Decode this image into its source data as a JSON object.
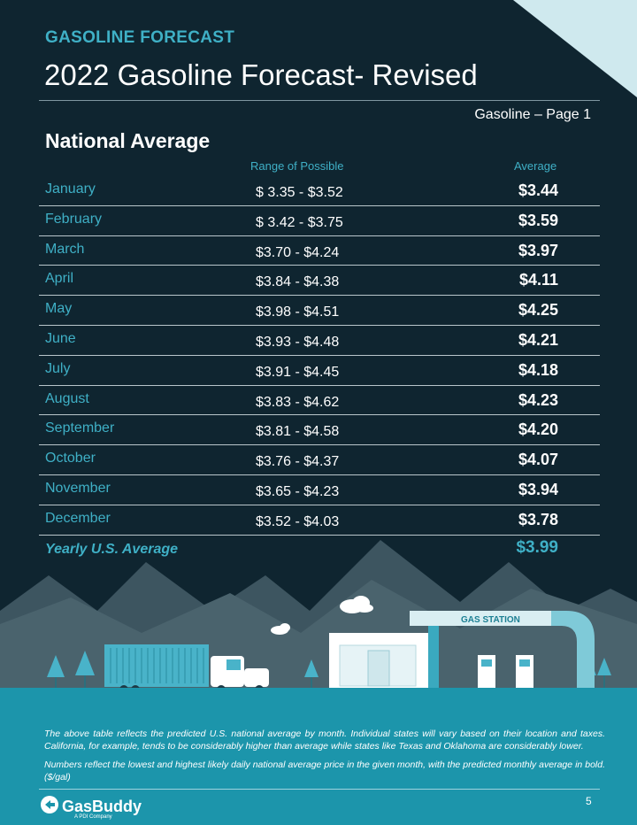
{
  "header": {
    "kicker": "GASOLINE FORECAST",
    "title": "2022 Gasoline Forecast- Revised",
    "page_label": "Gasoline – Page 1"
  },
  "section_title": "National Average",
  "columns": {
    "range": "Range of Possible",
    "average": "Average"
  },
  "rows": [
    {
      "month": "January",
      "range": "$ 3.35 - $3.52",
      "avg": "$3.44"
    },
    {
      "month": "February",
      "range": "$ 3.42 - $3.75",
      "avg": "$3.59"
    },
    {
      "month": "March",
      "range": "$3.70 - $4.24",
      "avg": "$3.97"
    },
    {
      "month": "April",
      "range": "$3.84 - $4.38",
      "avg": "$4.11"
    },
    {
      "month": "May",
      "range": "$3.98 - $4.51",
      "avg": "$4.25"
    },
    {
      "month": "June",
      "range": "$3.93 - $4.48",
      "avg": "$4.21"
    },
    {
      "month": "July",
      "range": "$3.91 - $4.45",
      "avg": "$4.18"
    },
    {
      "month": "August",
      "range": "$3.83 - $4.62",
      "avg": "$4.23"
    },
    {
      "month": "September",
      "range": "$3.81 - $4.58",
      "avg": "$4.20"
    },
    {
      "month": "October",
      "range": "$3.76 - $4.37",
      "avg": "$4.07"
    },
    {
      "month": "November",
      "range": "$3.65 - $4.23",
      "avg": "$3.94"
    },
    {
      "month": "December",
      "range": "$3.52 - $4.03",
      "avg": "$3.78"
    }
  ],
  "yearly": {
    "label": "Yearly U.S. Average",
    "value": "$3.99"
  },
  "illustration": {
    "station_sign": "GAS STATION"
  },
  "footer": {
    "note1": "The above table reflects the predicted U.S. national average by month. Individual states will vary based on their location and taxes. California, for example, tends to be considerably higher than average while states like Texas and Oklahoma are considerably lower.",
    "note2": "Numbers reflect the lowest and highest likely daily national average price in the given month, with the predicted monthly average in bold. ($/gal)",
    "brand": "GasBuddy",
    "brand_sub": "A PDI Company",
    "page_number": "5"
  },
  "colors": {
    "background": "#0f2530",
    "accent": "#3fb0c6",
    "footer": "#1c95ab"
  }
}
